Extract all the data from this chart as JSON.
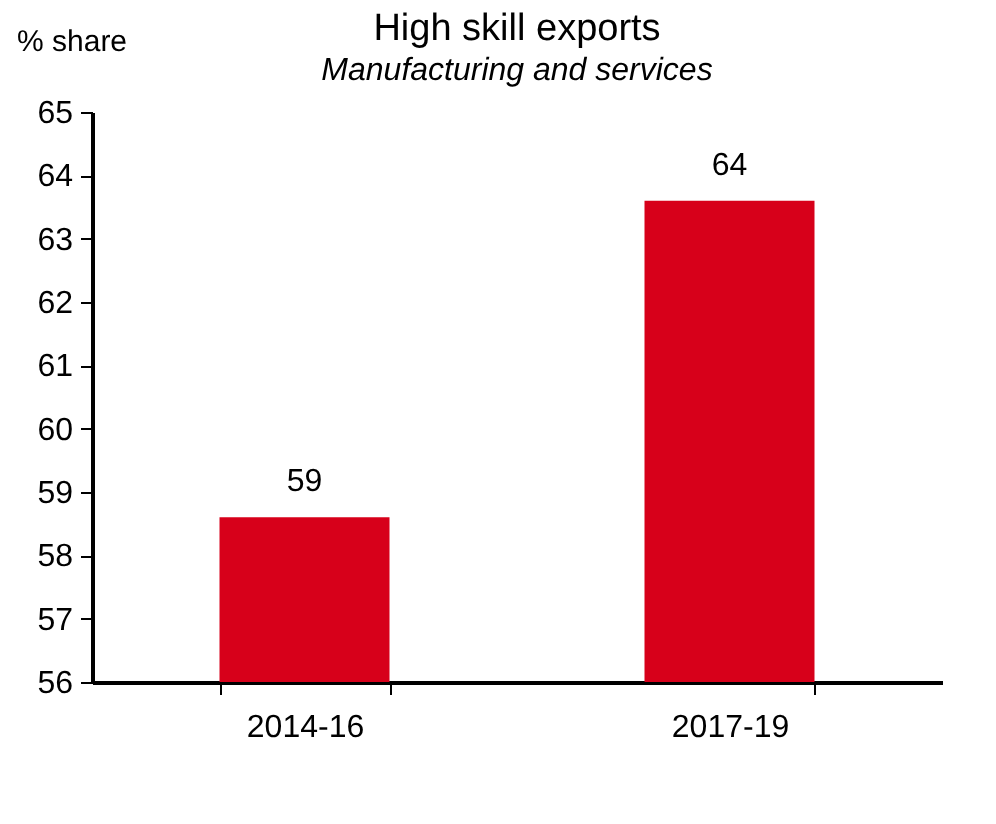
{
  "chart_data": {
    "type": "bar",
    "title": "High skill exports",
    "subtitle": "Manufacturing and services",
    "ylabel": "% share",
    "categories": [
      "2014-16",
      "2017-19"
    ],
    "values": [
      58.6,
      63.6
    ],
    "value_labels": [
      "59",
      "64"
    ],
    "color": "#d7001a",
    "ylim": [
      56,
      65
    ],
    "yticks": [
      56,
      57,
      58,
      59,
      60,
      61,
      62,
      63,
      64,
      65
    ],
    "grid": false
  }
}
